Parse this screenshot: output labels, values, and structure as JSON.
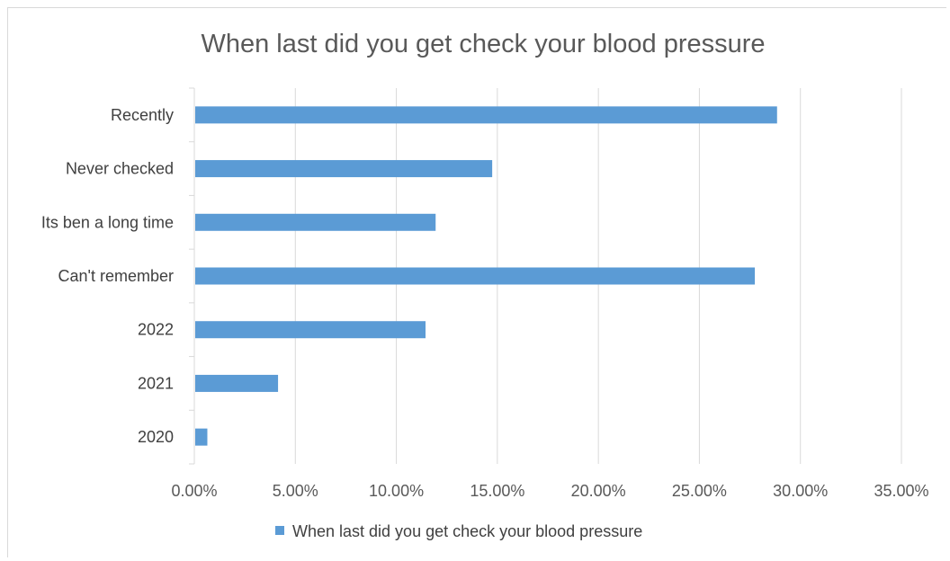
{
  "chart_data": {
    "type": "bar",
    "orientation": "horizontal",
    "title": "When last did you get check your blood pressure",
    "categories": [
      "Recently",
      "Never checked",
      "Its ben a long time",
      "Can't remember",
      "2022",
      "2021",
      "2020"
    ],
    "series": [
      {
        "name": "When last did you get check your blood pressure",
        "values": [
          28.8,
          14.7,
          11.9,
          27.7,
          11.4,
          4.1,
          0.6
        ],
        "color": "#5b9bd5"
      }
    ],
    "xlim": [
      0,
      35
    ],
    "x_ticks": [
      "0.00%",
      "5.00%",
      "10.00%",
      "15.00%",
      "20.00%",
      "25.00%",
      "30.00%",
      "35.00%"
    ],
    "grid": "vertical",
    "legend_position": "bottom"
  }
}
